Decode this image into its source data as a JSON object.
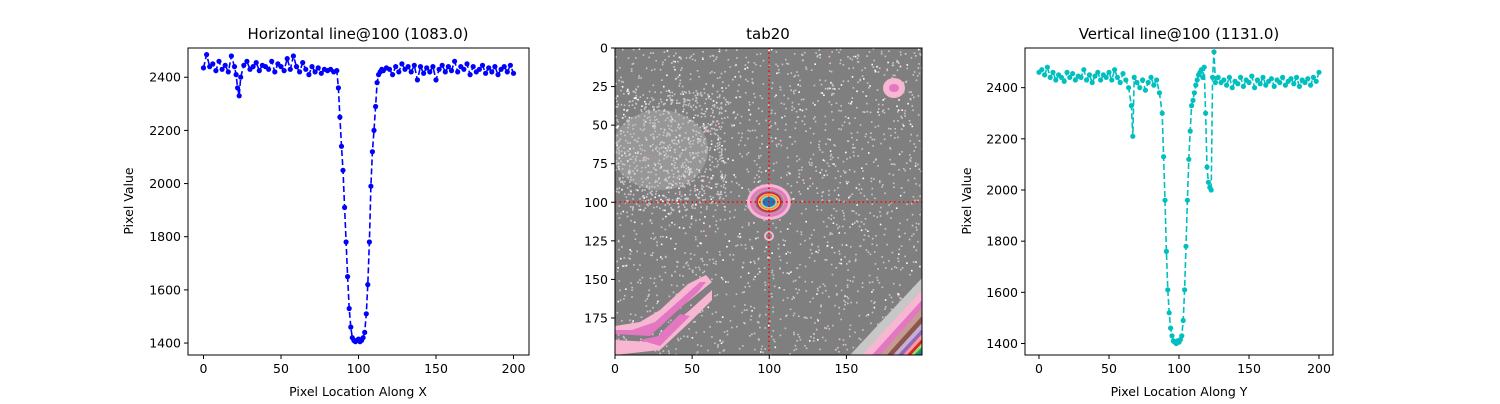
{
  "chart_data": [
    {
      "type": "line",
      "title": "Horizontal line@100 (1083.0)",
      "xlabel": "Pixel Location Along X",
      "ylabel": "Pixel Value",
      "xlim": [
        -10,
        210
      ],
      "ylim": [
        1355,
        2510
      ],
      "xticks": [
        0,
        50,
        100,
        150,
        200
      ],
      "yticks": [
        1400,
        1600,
        1800,
        2000,
        2200,
        2400
      ],
      "color": "#0000ff",
      "linestyle": "dashed",
      "marker": "circle",
      "x": [
        0,
        2,
        4,
        6,
        8,
        10,
        12,
        14,
        16,
        18,
        20,
        21,
        22,
        23,
        24,
        26,
        28,
        30,
        32,
        34,
        36,
        38,
        40,
        42,
        44,
        46,
        48,
        50,
        52,
        54,
        56,
        58,
        60,
        62,
        64,
        66,
        68,
        70,
        72,
        74,
        76,
        78,
        80,
        82,
        84,
        86,
        87,
        88,
        89,
        90,
        91,
        92,
        93,
        94,
        95,
        96,
        97,
        98,
        99,
        100,
        101,
        102,
        103,
        104,
        105,
        106,
        107,
        108,
        109,
        110,
        111,
        112,
        113,
        114,
        115,
        116,
        118,
        120,
        122,
        124,
        126,
        128,
        130,
        132,
        134,
        136,
        138,
        140,
        142,
        144,
        146,
        148,
        150,
        152,
        154,
        156,
        158,
        160,
        162,
        164,
        166,
        168,
        170,
        172,
        174,
        176,
        178,
        180,
        182,
        184,
        186,
        188,
        190,
        192,
        194,
        196,
        198,
        200
      ],
      "y": [
        2435,
        2485,
        2440,
        2450,
        2425,
        2460,
        2430,
        2445,
        2420,
        2480,
        2440,
        2410,
        2360,
        2330,
        2400,
        2445,
        2460,
        2430,
        2440,
        2455,
        2425,
        2445,
        2440,
        2430,
        2460,
        2420,
        2450,
        2440,
        2425,
        2470,
        2430,
        2480,
        2440,
        2420,
        2455,
        2430,
        2410,
        2440,
        2420,
        2435,
        2415,
        2430,
        2425,
        2430,
        2420,
        2425,
        2360,
        2250,
        2140,
        2050,
        1910,
        1780,
        1650,
        1530,
        1460,
        1420,
        1410,
        1405,
        1410,
        1415,
        1405,
        1410,
        1420,
        1440,
        1510,
        1620,
        1780,
        1990,
        2120,
        2200,
        2290,
        2380,
        2410,
        2420,
        2430,
        2425,
        2435,
        2430,
        2410,
        2440,
        2420,
        2450,
        2430,
        2440,
        2420,
        2445,
        2390,
        2440,
        2415,
        2435,
        2420,
        2440,
        2390,
        2430,
        2445,
        2420,
        2440,
        2425,
        2460,
        2420,
        2440,
        2430,
        2450,
        2410,
        2440,
        2420,
        2430,
        2445,
        2415,
        2435,
        2420,
        2440,
        2410,
        2430,
        2440,
        2420,
        2445,
        2415
      ]
    },
    {
      "type": "heatmap",
      "title": "tab20",
      "colormap": "tab20",
      "xlim": [
        0,
        199
      ],
      "ylim": [
        199,
        0
      ],
      "xticks": [
        0,
        50,
        100,
        150
      ],
      "yticks": [
        0,
        25,
        50,
        75,
        100,
        125,
        150,
        175
      ],
      "crosshair": {
        "x": 100,
        "y": 100,
        "color": "#ff0000",
        "linestyle": "dotted"
      }
    },
    {
      "type": "line",
      "title": "Vertical line@100 (1131.0)",
      "xlabel": "Pixel Location Along Y",
      "ylabel": "Pixel Value",
      "xlim": [
        -10,
        210
      ],
      "ylim": [
        1355,
        2555
      ],
      "xticks": [
        0,
        50,
        100,
        150,
        200
      ],
      "yticks": [
        1400,
        1600,
        1800,
        2000,
        2200,
        2400
      ],
      "color": "#00bfbf",
      "linestyle": "dashed",
      "marker": "circle",
      "x": [
        0,
        2,
        4,
        6,
        8,
        10,
        12,
        14,
        16,
        18,
        20,
        22,
        24,
        26,
        28,
        30,
        32,
        34,
        36,
        38,
        40,
        42,
        44,
        46,
        48,
        50,
        52,
        54,
        56,
        58,
        60,
        62,
        64,
        66,
        67,
        68,
        70,
        72,
        74,
        76,
        78,
        80,
        82,
        84,
        86,
        88,
        89,
        90,
        91,
        92,
        93,
        94,
        95,
        96,
        97,
        98,
        99,
        100,
        101,
        102,
        103,
        104,
        105,
        106,
        107,
        108,
        109,
        110,
        111,
        112,
        113,
        114,
        115,
        116,
        117,
        118,
        119,
        120,
        121,
        122,
        123,
        124,
        125,
        126,
        128,
        130,
        132,
        134,
        136,
        138,
        140,
        142,
        144,
        146,
        148,
        150,
        152,
        154,
        156,
        158,
        160,
        162,
        164,
        166,
        168,
        170,
        172,
        174,
        176,
        178,
        180,
        182,
        184,
        186,
        188,
        190,
        192,
        194,
        196,
        198,
        200
      ],
      "y": [
        2460,
        2470,
        2450,
        2480,
        2440,
        2460,
        2430,
        2450,
        2440,
        2425,
        2460,
        2440,
        2455,
        2430,
        2445,
        2440,
        2470,
        2430,
        2450,
        2420,
        2445,
        2460,
        2430,
        2450,
        2440,
        2460,
        2430,
        2470,
        2440,
        2420,
        2455,
        2430,
        2400,
        2330,
        2210,
        2440,
        2420,
        2400,
        2430,
        2390,
        2420,
        2440,
        2410,
        2430,
        2380,
        2300,
        2130,
        1960,
        1760,
        1610,
        1520,
        1460,
        1430,
        1410,
        1405,
        1400,
        1410,
        1405,
        1415,
        1430,
        1490,
        1610,
        1780,
        1960,
        2120,
        2230,
        2330,
        2350,
        2380,
        2410,
        2430,
        2450,
        2460,
        2470,
        2440,
        2480,
        2300,
        2090,
        2030,
        2010,
        2000,
        2440,
        2540,
        2420,
        2440,
        2420,
        2430,
        2410,
        2440,
        2400,
        2425,
        2415,
        2440,
        2405,
        2430,
        2420,
        2445,
        2400,
        2430,
        2415,
        2440,
        2410,
        2425,
        2435,
        2405,
        2430,
        2420,
        2440,
        2410,
        2425,
        2435,
        2415,
        2440,
        2405,
        2430,
        2420,
        2435,
        2410,
        2440,
        2425,
        2460
      ]
    }
  ]
}
